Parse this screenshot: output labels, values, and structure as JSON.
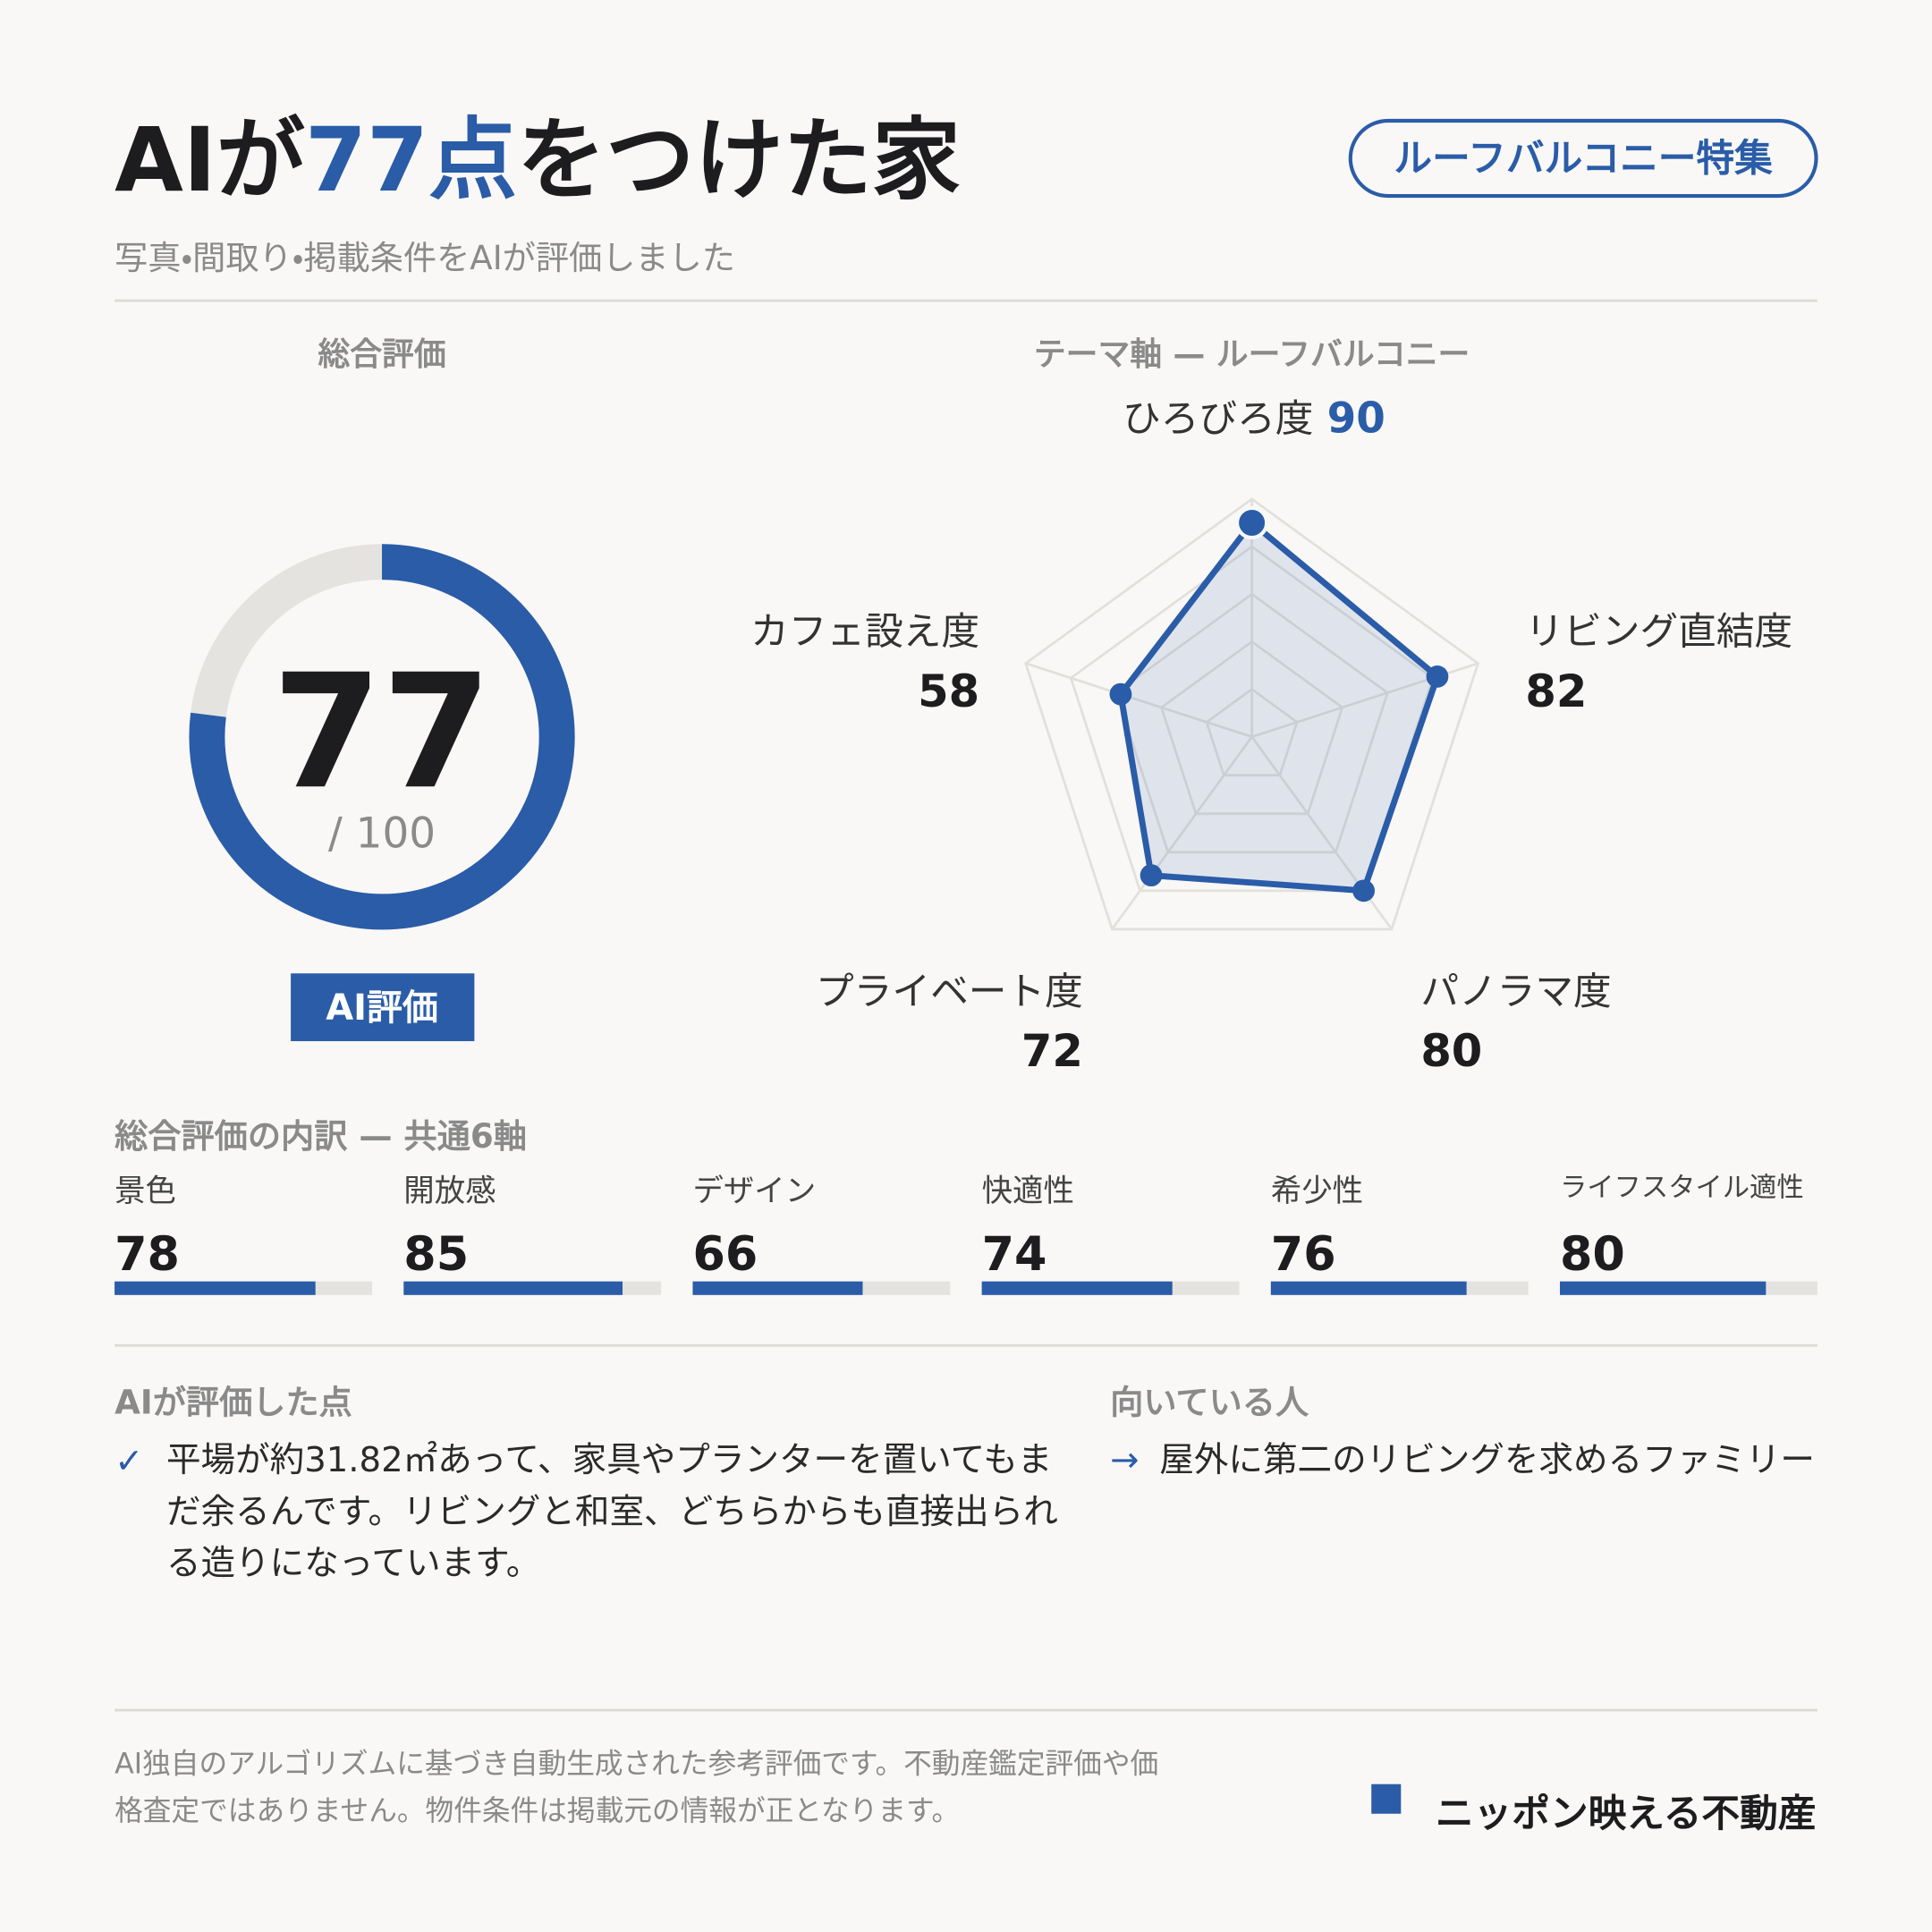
{
  "header": {
    "title_parts": [
      "AIが",
      "77点",
      "をつけた家"
    ],
    "subtitle": "写真・間取り・掲載条件をAIが評価しました",
    "tag": "ルーフバルコニー特集"
  },
  "chart_data": [
    {
      "type": "gauge",
      "title": "総合評価",
      "value": 77,
      "range": [
        0,
        100
      ],
      "max_label": "/ 100",
      "badge": "AI評価",
      "color": "#2a5ca8",
      "track_color": "#e5e3df"
    },
    {
      "type": "radar",
      "title": "テーマ軸 — ルーフバルコニー",
      "categories": [
        "ひろびろ度",
        "リビング直結度",
        "パノラマ度",
        "プライベート度",
        "カフェ設え度"
      ],
      "values": [
        90,
        82,
        80,
        72,
        58
      ],
      "rlim": [
        0,
        100
      ],
      "rticks": [
        20,
        40,
        60,
        80,
        100
      ],
      "color": "#2a5ca8"
    },
    {
      "type": "bar",
      "title": "総合評価の内訳 — 共通6軸",
      "categories": [
        "景色",
        "開放感",
        "デザイン",
        "快適性",
        "希少性",
        "ライフスタイル適性"
      ],
      "values": [
        78,
        85,
        66,
        74,
        76,
        80
      ],
      "xlim": [
        0,
        100
      ],
      "color": "#2a5ca8",
      "track_color": "#e5e3df"
    }
  ],
  "highlights": {
    "title": "AIが評価した点",
    "icon": "✓",
    "lines": [
      "平場が約31.82㎡あって、家具やプランターを置いてもま",
      "だ余るんです。リビングと和室、どちらからも直接出られ",
      "る造りになっています。"
    ]
  },
  "audience": {
    "title": "向いている人",
    "icon": "→",
    "text": "屋外に第二のリビングを求めるファミリー"
  },
  "disclaimer": [
    "AI独自のアルゴリズムに基づき自動生成された参考評価です。不動産鑑定評価や価",
    "格査定ではありません。物件条件は掲載元の情報が正となります。"
  ],
  "brand": "ニッポン映える不動産"
}
